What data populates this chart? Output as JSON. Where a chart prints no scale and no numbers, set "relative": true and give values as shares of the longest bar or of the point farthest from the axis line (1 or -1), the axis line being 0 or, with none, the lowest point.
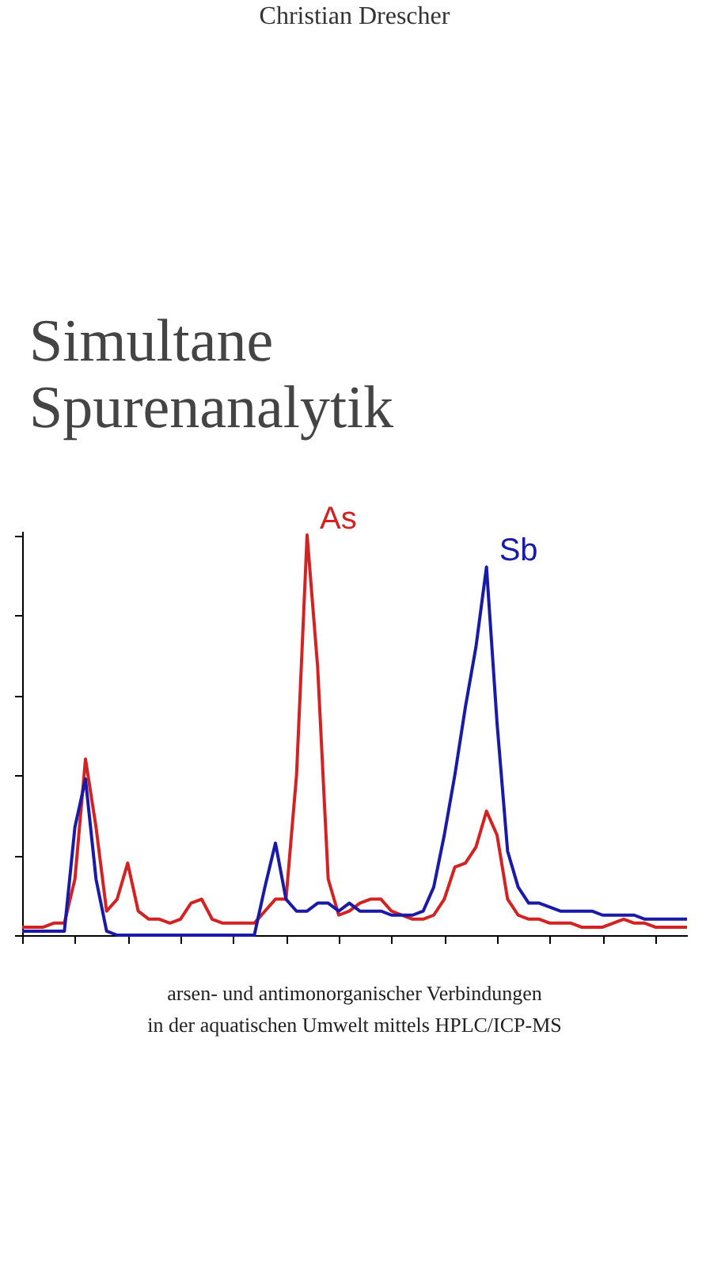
{
  "chart_data": {
    "type": "line",
    "relative": true,
    "title": "Simultane Spurenanalytik",
    "subtitle": [
      "arsen- und antimonorganischer Verbindungen",
      "in der aquatischen Umwelt mittels HPLC/ICP-MS"
    ],
    "annotations": [
      "Christian Drescher"
    ],
    "tick_labels": false,
    "grid": false,
    "legend": false,
    "line_style": "solid",
    "marker": "none",
    "categories": [
      null,
      null,
      null,
      null,
      null,
      null,
      null,
      null,
      null,
      null,
      null,
      null,
      null,
      null,
      null,
      null,
      null,
      null,
      null,
      null,
      null,
      null,
      null,
      null,
      null,
      null,
      null,
      null,
      null,
      null,
      null,
      null,
      null,
      null,
      null,
      null,
      null,
      null,
      null,
      null,
      null,
      null,
      null,
      null,
      null,
      null,
      null,
      null,
      null,
      null,
      null,
      null,
      null,
      null,
      null,
      null,
      null,
      null,
      null,
      null,
      null,
      null,
      null,
      null
    ],
    "series": [
      {
        "name": "As",
        "color": "#d42222",
        "values": [
          0.02,
          0.02,
          0.02,
          0.03,
          0.03,
          0.14,
          0.44,
          0.27,
          0.06,
          0.09,
          0.18,
          0.06,
          0.04,
          0.04,
          0.03,
          0.04,
          0.08,
          0.09,
          0.04,
          0.03,
          0.03,
          0.03,
          0.03,
          0.06,
          0.09,
          0.09,
          0.4,
          1.0,
          0.67,
          0.14,
          0.05,
          0.06,
          0.08,
          0.09,
          0.09,
          0.06,
          0.05,
          0.04,
          0.04,
          0.05,
          0.09,
          0.17,
          0.18,
          0.22,
          0.31,
          0.25,
          0.09,
          0.05,
          0.04,
          0.04,
          0.03,
          0.03,
          0.03,
          0.02,
          0.02,
          0.02,
          0.03,
          0.04,
          0.03,
          0.03,
          0.02,
          0.02,
          0.02,
          0.02
        ]
      },
      {
        "name": "Sb",
        "color": "#1a1aa8",
        "values": [
          0.01,
          0.01,
          0.01,
          0.01,
          0.01,
          0.27,
          0.39,
          0.14,
          0.01,
          0.0,
          0.0,
          0.0,
          0.0,
          0.0,
          0.0,
          0.0,
          0.0,
          0.0,
          0.0,
          0.0,
          0.0,
          0.0,
          0.0,
          0.12,
          0.23,
          0.09,
          0.06,
          0.06,
          0.08,
          0.08,
          0.06,
          0.08,
          0.06,
          0.06,
          0.06,
          0.05,
          0.05,
          0.05,
          0.06,
          0.12,
          0.25,
          0.4,
          0.57,
          0.72,
          0.92,
          0.53,
          0.21,
          0.12,
          0.08,
          0.08,
          0.07,
          0.06,
          0.06,
          0.06,
          0.06,
          0.05,
          0.05,
          0.05,
          0.05,
          0.04,
          0.04,
          0.04,
          0.04,
          0.04
        ]
      }
    ]
  }
}
